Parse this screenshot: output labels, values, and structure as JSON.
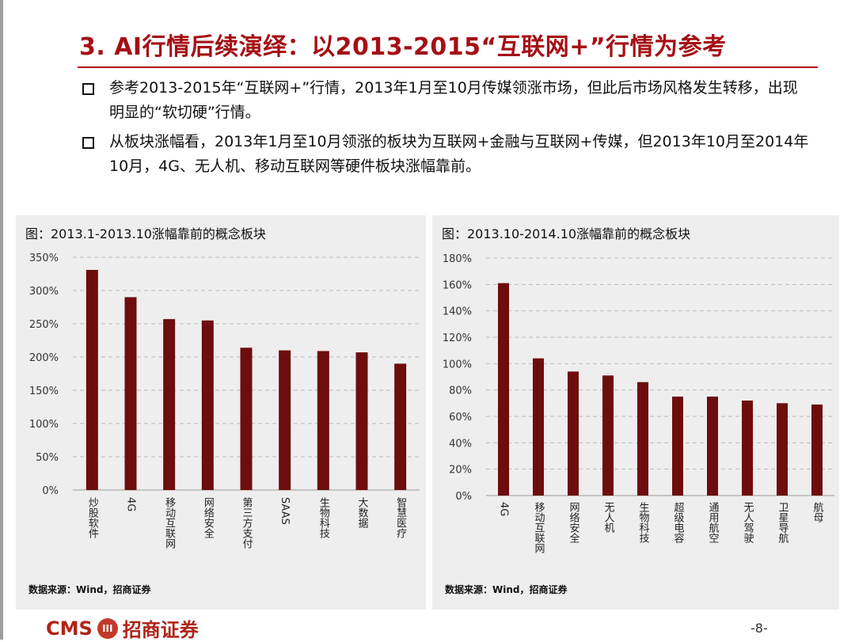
{
  "slide": {
    "title": "3. AI行情后续演绎：以2013-2015“互联网+”行情为参考",
    "bullets": [
      "参考2013-2015年“互联网+”行情，2013年1月至10月传媒领涨市场，但此后市场风格发生转移，出现明显的“软切硬”行情。",
      "从板块涨幅看，2013年1月至10月领涨的板块为互联网+金融与互联网+传媒，但2013年10月至2014年10月，4G、无人机、移动互联网等硬件板块涨幅靠前。"
    ],
    "footer_logo": "CMS",
    "footer_logo_cn": "招商证券",
    "page_number": "-8-"
  },
  "chart_data": [
    {
      "type": "bar",
      "title": "图：2013.1-2013.10涨幅靠前的概念板块",
      "source": "数据来源：Wind，招商证券",
      "categories": [
        "炒股软件",
        "4G",
        "移动互联网",
        "网络安全",
        "第三方支付",
        "SAAS",
        "生物科技",
        "大数据",
        "智慧医疗"
      ],
      "values": [
        331,
        290,
        257,
        255,
        214,
        210,
        209,
        207,
        190
      ],
      "ylim": [
        0,
        350
      ],
      "yticks": [
        0,
        50,
        100,
        150,
        200,
        250,
        300,
        350
      ],
      "tick_labels": [
        "0%",
        "50%",
        "100%",
        "150%",
        "200%",
        "250%",
        "300%",
        "350%"
      ],
      "grid": true,
      "color": "#6e0d0d"
    },
    {
      "type": "bar",
      "title": "图：2013.10-2014.10涨幅靠前的概念板块",
      "source": "数据来源：Wind，招商证券",
      "categories": [
        "4G",
        "移动互联网",
        "网络安全",
        "无人机",
        "生物科技",
        "超级电容",
        "通用航空",
        "无人驾驶",
        "卫星导航",
        "航母"
      ],
      "values": [
        161,
        104,
        94,
        91,
        86,
        75,
        75,
        72,
        70,
        69
      ],
      "ylim": [
        0,
        180
      ],
      "yticks": [
        0,
        20,
        40,
        60,
        80,
        100,
        120,
        140,
        160,
        180
      ],
      "tick_labels": [
        "0%",
        "20%",
        "40%",
        "60%",
        "80%",
        "100%",
        "120%",
        "140%",
        "160%",
        "180%"
      ],
      "grid": true,
      "color": "#6e0d0d"
    }
  ]
}
